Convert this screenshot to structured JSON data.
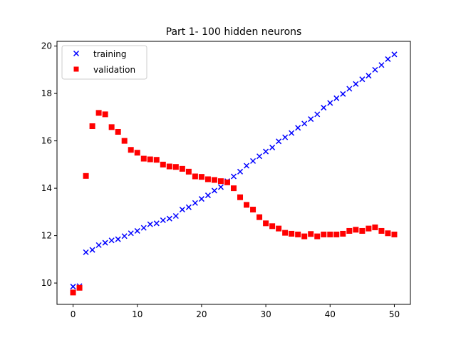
{
  "chart_data": {
    "type": "scatter",
    "title": "Part 1- 100 hidden neurons",
    "xlabel": "",
    "ylabel": "",
    "xlim": [
      -2.5,
      52.5
    ],
    "ylim": [
      9.1,
      20.2
    ],
    "x_ticks": [
      0,
      10,
      20,
      30,
      40,
      50
    ],
    "y_ticks": [
      10,
      12,
      14,
      16,
      18,
      20
    ],
    "x_tick_labels": [
      "0",
      "10",
      "20",
      "30",
      "40",
      "50"
    ],
    "y_tick_labels": [
      "10",
      "12",
      "14",
      "16",
      "18",
      "20"
    ],
    "grid": false,
    "legend_position": "top-left",
    "series": [
      {
        "name": "training",
        "marker": "x",
        "color": "#0000ff",
        "x": [
          0,
          1,
          2,
          3,
          4,
          5,
          6,
          7,
          8,
          9,
          10,
          11,
          12,
          13,
          14,
          15,
          16,
          17,
          18,
          19,
          20,
          21,
          22,
          23,
          24,
          25,
          26,
          27,
          28,
          29,
          30,
          31,
          32,
          33,
          34,
          35,
          36,
          37,
          38,
          39,
          40,
          41,
          42,
          43,
          44,
          45,
          46,
          47,
          48,
          49,
          50
        ],
        "values": [
          9.85,
          9.87,
          11.3,
          11.4,
          11.6,
          11.7,
          11.8,
          11.85,
          11.98,
          12.1,
          12.2,
          12.33,
          12.48,
          12.52,
          12.65,
          12.72,
          12.83,
          13.1,
          13.2,
          13.38,
          13.55,
          13.7,
          13.9,
          14.05,
          14.3,
          14.5,
          14.7,
          14.95,
          15.15,
          15.35,
          15.55,
          15.72,
          15.98,
          16.15,
          16.33,
          16.55,
          16.73,
          16.92,
          17.12,
          17.4,
          17.6,
          17.8,
          17.98,
          18.2,
          18.4,
          18.6,
          18.75,
          19.0,
          19.2,
          19.45,
          19.65
        ]
      },
      {
        "name": "validation",
        "marker": "s",
        "color": "#ff0000",
        "x": [
          0,
          1,
          2,
          3,
          4,
          5,
          6,
          7,
          8,
          9,
          10,
          11,
          12,
          13,
          14,
          15,
          16,
          17,
          18,
          19,
          20,
          21,
          22,
          23,
          24,
          25,
          26,
          27,
          28,
          29,
          30,
          31,
          32,
          33,
          34,
          35,
          36,
          37,
          38,
          39,
          40,
          41,
          42,
          43,
          44,
          45,
          46,
          47,
          48,
          49,
          50
        ],
        "values": [
          9.6,
          9.8,
          14.52,
          16.62,
          17.18,
          17.12,
          16.58,
          16.38,
          16.0,
          15.62,
          15.5,
          15.25,
          15.22,
          15.2,
          15.0,
          14.92,
          14.9,
          14.82,
          14.7,
          14.5,
          14.48,
          14.38,
          14.35,
          14.3,
          14.25,
          14.0,
          13.62,
          13.3,
          13.1,
          12.78,
          12.52,
          12.4,
          12.3,
          12.12,
          12.08,
          12.05,
          11.97,
          12.07,
          11.97,
          12.05,
          12.05,
          12.05,
          12.08,
          12.2,
          12.25,
          12.2,
          12.3,
          12.35,
          12.2,
          12.1,
          12.05
        ]
      }
    ]
  }
}
